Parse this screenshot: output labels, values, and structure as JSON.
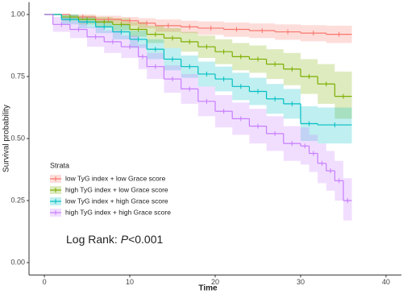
{
  "chart_data": {
    "type": "step",
    "x_label": "Time",
    "y_label": "Survival probability",
    "legend_title": "Strata",
    "legend_position": "bottom-left",
    "annotation": {
      "prefix": "Log Rank: ",
      "italic": "P",
      "suffix": "<0.001"
    },
    "xlim": [
      -1.8,
      41.8
    ],
    "ylim": [
      -0.05,
      1.05
    ],
    "xticks": [
      0,
      10,
      20,
      30,
      40
    ],
    "yticks": [
      {
        "value": 0,
        "label": "0.00"
      },
      {
        "value": 0.25,
        "label": "0.25"
      },
      {
        "value": 0.5,
        "label": "0.50"
      },
      {
        "value": 0.75,
        "label": "0.75"
      },
      {
        "value": 1,
        "label": "1.00"
      }
    ],
    "series": [
      {
        "name": "low TyG index + low Grace score",
        "color": "#F8766D",
        "x": [
          0,
          3,
          6,
          9,
          11,
          13,
          16,
          18,
          21,
          24,
          27,
          30,
          33,
          36
        ],
        "values": [
          1,
          0.99,
          0.98,
          0.975,
          0.965,
          0.955,
          0.95,
          0.945,
          0.94,
          0.935,
          0.93,
          0.925,
          0.92,
          0.92
        ],
        "upper": [
          1,
          1,
          0.995,
          0.99,
          0.985,
          0.98,
          0.975,
          0.972,
          0.968,
          0.964,
          0.96,
          0.957,
          0.955,
          0.955
        ],
        "lower": [
          1,
          0.98,
          0.965,
          0.955,
          0.945,
          0.93,
          0.925,
          0.918,
          0.91,
          0.905,
          0.898,
          0.892,
          0.885,
          0.885
        ]
      },
      {
        "name": "high TyG index + low Grace score",
        "color": "#7CAE00",
        "x": [
          0,
          2,
          4,
          6,
          8,
          10,
          12,
          14,
          16,
          18,
          20,
          22,
          24,
          26,
          28,
          30,
          32,
          34,
          36
        ],
        "values": [
          1,
          0.99,
          0.98,
          0.97,
          0.96,
          0.94,
          0.92,
          0.905,
          0.89,
          0.87,
          0.85,
          0.83,
          0.82,
          0.8,
          0.78,
          0.75,
          0.72,
          0.67,
          0.67
        ],
        "upper": [
          1,
          1,
          0.995,
          0.99,
          0.985,
          0.97,
          0.955,
          0.945,
          0.93,
          0.915,
          0.9,
          0.885,
          0.875,
          0.86,
          0.845,
          0.82,
          0.8,
          0.77,
          0.77
        ],
        "lower": [
          1,
          0.975,
          0.96,
          0.95,
          0.935,
          0.91,
          0.885,
          0.865,
          0.85,
          0.825,
          0.8,
          0.775,
          0.765,
          0.74,
          0.715,
          0.68,
          0.64,
          0.58,
          0.58
        ]
      },
      {
        "name": "low TyG index + high Grace score",
        "color": "#00BFC4",
        "x": [
          0,
          2,
          4,
          6,
          8,
          10,
          12,
          14,
          16,
          18,
          20,
          22,
          24,
          26,
          28,
          30,
          32,
          36
        ],
        "values": [
          1,
          0.98,
          0.97,
          0.95,
          0.93,
          0.9,
          0.86,
          0.82,
          0.79,
          0.76,
          0.74,
          0.71,
          0.69,
          0.66,
          0.64,
          0.56,
          0.555,
          0.555
        ],
        "upper": [
          1,
          1,
          0.99,
          0.975,
          0.96,
          0.935,
          0.9,
          0.865,
          0.835,
          0.81,
          0.79,
          0.765,
          0.745,
          0.72,
          0.7,
          0.63,
          0.625,
          0.625
        ],
        "lower": [
          1,
          0.96,
          0.945,
          0.925,
          0.9,
          0.865,
          0.82,
          0.775,
          0.745,
          0.71,
          0.69,
          0.655,
          0.635,
          0.6,
          0.58,
          0.49,
          0.48,
          0.48
        ]
      },
      {
        "name": "high TyG index + high Grace score",
        "color": "#C77CFF",
        "x": [
          0,
          1,
          3,
          5,
          7,
          9,
          11,
          12,
          14,
          16,
          18,
          20,
          22,
          24,
          26,
          28,
          30,
          31,
          32,
          33,
          34,
          35,
          36
        ],
        "values": [
          1,
          0.96,
          0.94,
          0.91,
          0.89,
          0.87,
          0.83,
          0.79,
          0.74,
          0.7,
          0.65,
          0.61,
          0.58,
          0.55,
          0.52,
          0.48,
          0.47,
          0.44,
          0.4,
          0.37,
          0.33,
          0.25,
          0.25
        ],
        "upper": [
          1,
          0.99,
          0.975,
          0.95,
          0.935,
          0.915,
          0.88,
          0.845,
          0.795,
          0.76,
          0.71,
          0.675,
          0.645,
          0.62,
          0.59,
          0.55,
          0.545,
          0.515,
          0.48,
          0.45,
          0.41,
          0.34,
          0.34
        ],
        "lower": [
          1,
          0.93,
          0.905,
          0.87,
          0.845,
          0.825,
          0.78,
          0.74,
          0.685,
          0.64,
          0.59,
          0.545,
          0.515,
          0.48,
          0.45,
          0.41,
          0.395,
          0.365,
          0.32,
          0.29,
          0.25,
          0.17,
          0.17
        ]
      }
    ]
  }
}
